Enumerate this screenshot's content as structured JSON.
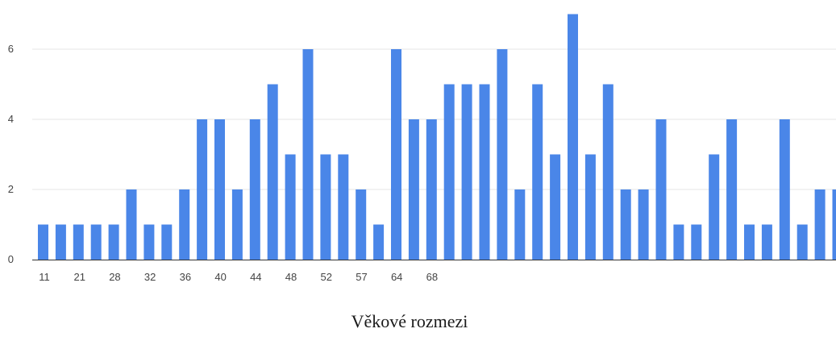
{
  "chart_data": {
    "type": "bar",
    "title": "",
    "xlabel": "Věkové rozmezi",
    "ylabel": "",
    "ylim": [
      0,
      7
    ],
    "y_ticks": [
      0,
      2,
      4,
      6
    ],
    "x_tick_labels": [
      "11",
      "21",
      "28",
      "32",
      "36",
      "40",
      "44",
      "48",
      "52",
      "57",
      "64",
      "68"
    ],
    "grid": true,
    "legend": "none",
    "bar_color": "#4a86e8",
    "values": [
      1,
      1,
      1,
      1,
      1,
      2,
      1,
      1,
      2,
      4,
      4,
      2,
      4,
      5,
      3,
      6,
      3,
      3,
      2,
      1,
      6,
      4,
      4,
      5,
      5,
      5,
      6,
      2,
      5,
      3,
      7,
      3,
      5,
      2,
      2,
      4,
      1,
      1,
      3,
      4,
      1,
      1,
      4,
      1,
      2,
      2
    ]
  }
}
